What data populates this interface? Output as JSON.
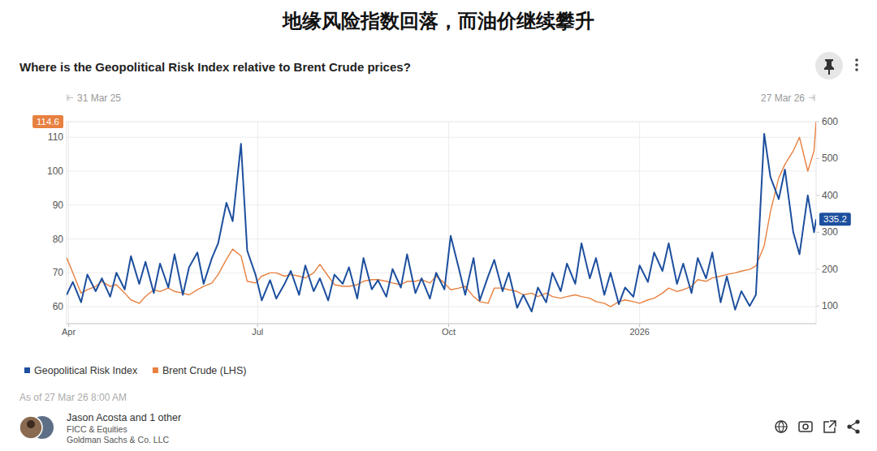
{
  "chart_data": {
    "type": "line",
    "headline": "地缘风险指数回落，而油价继续攀升",
    "title": "Where is the Geopolitical Risk Index relative to Brent Crude prices?",
    "range_labels": [
      "31 Mar 25",
      "27 Mar 26"
    ],
    "footnote": "As of 27 Mar 26 8:00 AM",
    "author": {
      "names": "Jason Acosta and 1 other",
      "team": "FICC & Equities",
      "firm": "Goldman Sachs & Co. LLC"
    },
    "x": [
      "2025-03-31",
      "2025-04-03",
      "2025-04-07",
      "2025-04-10",
      "2025-04-14",
      "2025-04-17",
      "2025-04-21",
      "2025-04-24",
      "2025-04-28",
      "2025-05-01",
      "2025-05-05",
      "2025-05-08",
      "2025-05-12",
      "2025-05-15",
      "2025-05-19",
      "2025-05-22",
      "2025-05-26",
      "2025-05-29",
      "2025-06-02",
      "2025-06-05",
      "2025-06-09",
      "2025-06-12",
      "2025-06-16",
      "2025-06-19",
      "2025-06-23",
      "2025-06-26",
      "2025-06-30",
      "2025-07-03",
      "2025-07-07",
      "2025-07-10",
      "2025-07-14",
      "2025-07-17",
      "2025-07-21",
      "2025-07-24",
      "2025-07-28",
      "2025-07-31",
      "2025-08-04",
      "2025-08-07",
      "2025-08-11",
      "2025-08-14",
      "2025-08-18",
      "2025-08-21",
      "2025-08-25",
      "2025-08-28",
      "2025-09-01",
      "2025-09-04",
      "2025-09-08",
      "2025-09-11",
      "2025-09-15",
      "2025-09-18",
      "2025-09-22",
      "2025-09-25",
      "2025-09-29",
      "2025-10-02",
      "2025-10-06",
      "2025-10-09",
      "2025-10-13",
      "2025-10-16",
      "2025-10-20",
      "2025-10-23",
      "2025-10-27",
      "2025-10-30",
      "2025-11-03",
      "2025-11-06",
      "2025-11-10",
      "2025-11-13",
      "2025-11-17",
      "2025-11-20",
      "2025-11-24",
      "2025-11-27",
      "2025-12-01",
      "2025-12-04",
      "2025-12-08",
      "2025-12-11",
      "2025-12-15",
      "2025-12-18",
      "2025-12-22",
      "2025-12-25",
      "2025-12-29",
      "2026-01-01",
      "2026-01-05",
      "2026-01-08",
      "2026-01-12",
      "2026-01-15",
      "2026-01-19",
      "2026-01-22",
      "2026-01-26",
      "2026-01-29",
      "2026-02-02",
      "2026-02-05",
      "2026-02-09",
      "2026-02-12",
      "2026-02-16",
      "2026-02-19",
      "2026-02-23",
      "2026-02-26",
      "2026-03-02",
      "2026-03-05",
      "2026-03-09",
      "2026-03-12",
      "2026-03-16",
      "2026-03-19",
      "2026-03-23",
      "2026-03-26",
      "2026-03-27"
    ],
    "series": [
      {
        "name": "Geopolitical Risk Index",
        "color": "#1d4f9e",
        "axis": "y2",
        "values": [
          130,
          165,
          110,
          185,
          140,
          175,
          125,
          190,
          145,
          235,
          160,
          220,
          135,
          215,
          150,
          240,
          130,
          205,
          245,
          160,
          230,
          270,
          380,
          330,
          540,
          250,
          185,
          115,
          170,
          120,
          160,
          195,
          130,
          210,
          140,
          175,
          115,
          185,
          160,
          205,
          120,
          230,
          145,
          170,
          125,
          200,
          150,
          240,
          135,
          175,
          120,
          190,
          145,
          290,
          200,
          130,
          230,
          115,
          180,
          225,
          140,
          190,
          95,
          130,
          85,
          150,
          110,
          190,
          140,
          215,
          160,
          270,
          175,
          230,
          130,
          190,
          105,
          150,
          125,
          210,
          165,
          245,
          195,
          270,
          160,
          215,
          135,
          230,
          175,
          245,
          110,
          180,
          90,
          140,
          100,
          130,
          567,
          450,
          390,
          470,
          300,
          240,
          400,
          300,
          335.2
        ]
      },
      {
        "name": "Brent Crude (LHS)",
        "color": "#e8803f",
        "values": [
          74.5,
          70,
          64,
          65,
          66,
          67.5,
          66,
          66.5,
          64,
          62,
          61,
          63,
          65,
          64.5,
          65.5,
          64.5,
          64,
          63.5,
          65,
          66,
          67,
          69.5,
          74,
          77,
          75,
          67.5,
          67,
          69,
          70,
          70,
          69,
          69.5,
          69,
          68.5,
          70,
          72.5,
          69,
          66.5,
          66,
          66,
          66.5,
          67.5,
          68,
          68,
          67.5,
          67,
          66.5,
          67.5,
          67.5,
          68,
          67,
          69,
          67,
          65,
          65.5,
          66,
          63,
          61.5,
          61,
          65.5,
          65.5,
          65,
          64.5,
          63.5,
          64,
          63,
          64,
          63,
          62.5,
          63,
          63.5,
          63,
          62.5,
          61.5,
          61,
          60,
          61.5,
          62,
          61.5,
          61,
          62,
          62.5,
          64,
          65.5,
          64.5,
          65,
          66,
          68,
          67.5,
          68.5,
          69,
          69.5,
          70,
          70.5,
          71,
          72,
          78,
          88,
          98,
          102,
          106,
          110,
          100,
          106,
          114.6
        ]
      }
    ],
    "xlim": [
      "2025-03-31",
      "2026-03-27"
    ],
    "xticks": [
      {
        "value": "2025-04-01",
        "label": "Apr"
      },
      {
        "value": "2025-07-01",
        "label": "Jul"
      },
      {
        "value": "2025-10-01",
        "label": "Oct"
      },
      {
        "value": "2026-01-01",
        "label": "2026"
      }
    ],
    "ylim": [
      55,
      114.6
    ],
    "yticks": [
      60,
      70,
      80,
      90,
      100,
      110
    ],
    "y2lim": [
      52,
      600
    ],
    "y2ticks": [
      100,
      200,
      300,
      400,
      500,
      600
    ],
    "grid": true,
    "legend": "bottom"
  }
}
